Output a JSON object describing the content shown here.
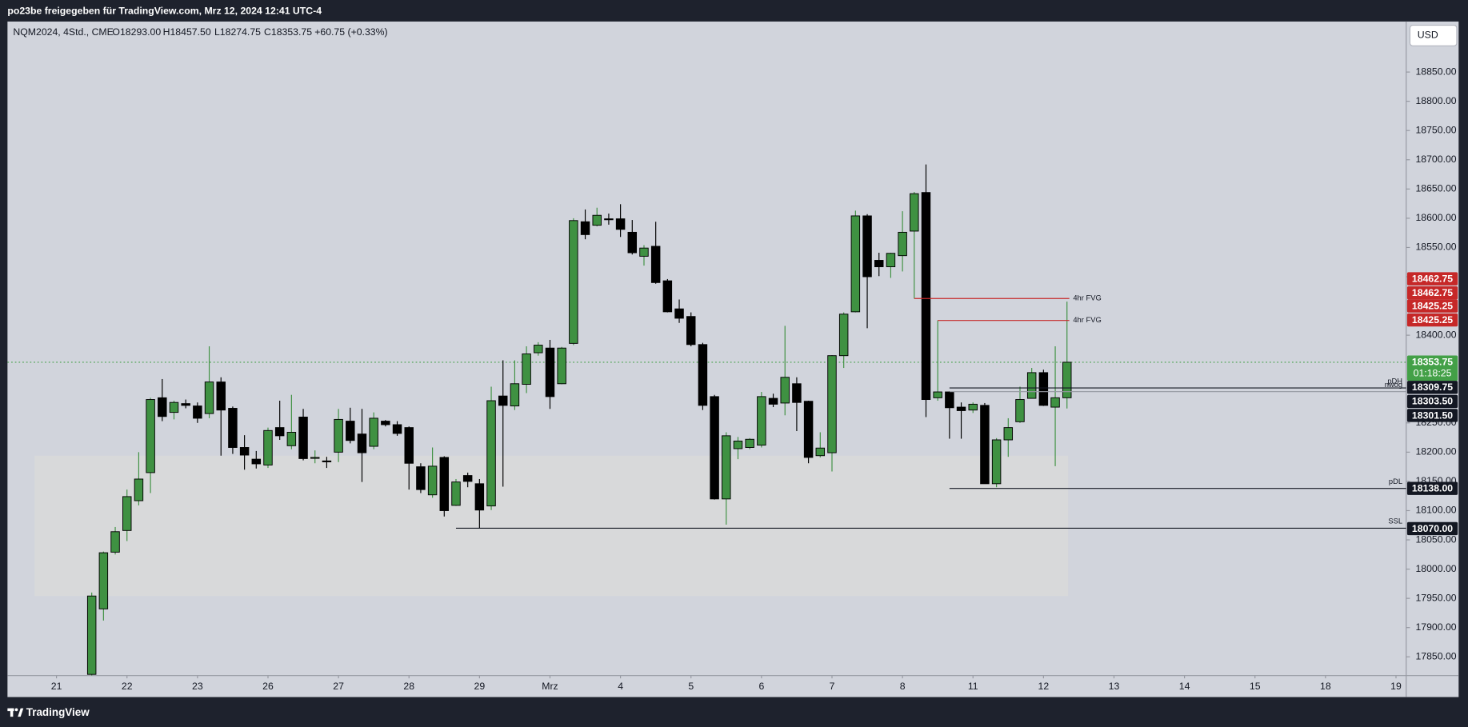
{
  "top_bar": "po23be freigegeben für TradingView.com, Mrz 12, 2024 12:41 UTC-4",
  "legend": {
    "symbol": "NQM2024, 4Std., CME",
    "open": "O18293.00",
    "high": "H18457.50",
    "low": "L18274.75",
    "close": "C18353.75",
    "change": "+60.75 (+0.33%)"
  },
  "currency": "USD",
  "brand": "TradingView",
  "chart_data": {
    "type": "candlestick",
    "up_color": "#3f9142",
    "down_color": "#000000",
    "open": [
      17820,
      17932,
      18029,
      18066,
      18117,
      18165,
      18293,
      18268,
      18283,
      18279,
      18266,
      18320,
      18275,
      18208,
      18188,
      18178,
      18242,
      18211,
      18260,
      18190,
      18185,
      18200,
      18253,
      18231,
      18210,
      18253,
      18247,
      18242,
      18175,
      18127,
      18191,
      18109,
      18160,
      18146,
      18108,
      18296,
      18279,
      18316,
      18370,
      18378,
      18317,
      18386,
      18594,
      18588,
      18599,
      18599,
      18576,
      18535,
      18552,
      18493,
      18445,
      18432,
      18384,
      18295,
      18120,
      18206,
      18208,
      18212,
      18292,
      18284,
      18317,
      18287,
      18194,
      18199,
      18365,
      18440,
      18604,
      18528,
      18517,
      18536,
      18578,
      18644,
      18293,
      18303,
      18277,
      18272,
      18280,
      18146,
      18221,
      18252,
      18292,
      18336,
      18277,
      18293
    ],
    "high": [
      17960,
      18030,
      18072,
      18136,
      18200,
      18293,
      18325,
      18288,
      18290,
      18285,
      18381,
      18328,
      18278,
      18229,
      18202,
      18242,
      18288,
      18298,
      18274,
      18203,
      18192,
      18274,
      18276,
      18274,
      18268,
      18255,
      18253,
      18244,
      18181,
      18208,
      18193,
      18154,
      18165,
      18154,
      18312,
      18357,
      18357,
      18381,
      18388,
      18392,
      18380,
      18600,
      18615,
      18618,
      18608,
      18624,
      18597,
      18554,
      18594,
      18496,
      18461,
      18439,
      18387,
      18298,
      18234,
      18226,
      18224,
      18303,
      18300,
      18416,
      18328,
      18288,
      18234,
      18366,
      18439,
      18613,
      18607,
      18541,
      18541,
      18612,
      18645,
      18692,
      18425.25,
      18304,
      18285,
      18285,
      18284,
      18224,
      18258,
      18312,
      18344,
      18341,
      18381,
      18457.5
    ],
    "low": [
      17800,
      17912,
      18025,
      18048,
      18109,
      18130,
      18253,
      18256,
      18275,
      18250,
      18258,
      18194,
      18197,
      18170,
      18172,
      18173,
      18221,
      18205,
      18186,
      18181,
      18173,
      18183,
      18215,
      18149,
      18205,
      18244,
      18228,
      18136,
      18130,
      18122,
      18090,
      18108,
      18140,
      18070,
      18101,
      18141,
      18272,
      18301,
      18365,
      18274,
      18316,
      18383,
      18564,
      18586,
      18589,
      18568,
      18538,
      18519,
      18488,
      18439,
      18421,
      18381,
      18272,
      18119,
      18076,
      18188,
      18205,
      18208,
      18277,
      18263,
      18236,
      18181,
      18191,
      18167,
      18344,
      18439,
      18412,
      18501,
      18498,
      18509,
      18462.75,
      18260,
      18288,
      18223,
      18223,
      18267,
      18146,
      18140,
      18192,
      18250,
      18292,
      18279,
      18176,
      18274.75
    ],
    "close": [
      17954,
      18028,
      18064,
      18124,
      18154,
      18290,
      18261,
      18285,
      18280,
      18258,
      18320,
      18272,
      18208,
      18195,
      18180,
      18237,
      18228,
      18234,
      18189,
      18191,
      18184,
      18256,
      18220,
      18199,
      18258,
      18247,
      18232,
      18181,
      18136,
      18176,
      18100,
      18149,
      18150,
      18101,
      18288,
      18280,
      18317,
      18368,
      18383,
      18295,
      18378,
      18596,
      18572,
      18605,
      18598,
      18581,
      18541,
      18549,
      18490,
      18440,
      18429,
      18384,
      18280,
      18120,
      18228,
      18219,
      18222,
      18295,
      18282,
      18328,
      18285,
      18191,
      18207,
      18365,
      18436,
      18604,
      18500,
      18517,
      18540,
      18576,
      18642,
      18290,
      18303,
      18276,
      18271,
      18282,
      18146,
      18221,
      18242,
      18290,
      18336,
      18280,
      18293,
      18353.75
    ],
    "xlim": [
      -7.17,
      111.87
    ],
    "xticks": [
      {
        "value": -3,
        "label": "21"
      },
      {
        "value": 3,
        "label": "22"
      },
      {
        "value": 9,
        "label": "23"
      },
      {
        "value": 15,
        "label": "26"
      },
      {
        "value": 21,
        "label": "27"
      },
      {
        "value": 27,
        "label": "28"
      },
      {
        "value": 33,
        "label": "29"
      },
      {
        "value": 39,
        "label": "Mrz"
      },
      {
        "value": 45,
        "label": "4"
      },
      {
        "value": 51,
        "label": "5"
      },
      {
        "value": 57,
        "label": "6"
      },
      {
        "value": 63,
        "label": "7"
      },
      {
        "value": 69,
        "label": "8"
      },
      {
        "value": 75,
        "label": "11"
      },
      {
        "value": 81,
        "label": "12"
      },
      {
        "value": 87,
        "label": "13"
      },
      {
        "value": 93,
        "label": "14"
      },
      {
        "value": 99,
        "label": "15"
      },
      {
        "value": 105,
        "label": "18"
      },
      {
        "value": 111,
        "label": "19"
      }
    ],
    "ylim": [
      17818,
      18936.4
    ],
    "yticks": [
      {
        "value": 18850,
        "label": "18850.00"
      },
      {
        "value": 18800,
        "label": "18800.00"
      },
      {
        "value": 18750,
        "label": "18750.00"
      },
      {
        "value": 18700,
        "label": "18700.00"
      },
      {
        "value": 18650,
        "label": "18650.00"
      },
      {
        "value": 18600,
        "label": "18600.00"
      },
      {
        "value": 18550,
        "label": "18550.00"
      },
      {
        "value": 18500,
        "label": "18500.00"
      },
      {
        "value": 18400,
        "label": "18400.00"
      },
      {
        "value": 18250,
        "label": "18250.00"
      },
      {
        "value": 18200,
        "label": "18200.00"
      },
      {
        "value": 18150,
        "label": "18150.00"
      },
      {
        "value": 18100,
        "label": "18100.00"
      },
      {
        "value": 18050,
        "label": "18050.00"
      },
      {
        "value": 18000,
        "label": "18000.00"
      },
      {
        "value": 17950,
        "label": "17950.00"
      },
      {
        "value": 17900,
        "label": "17900.00"
      },
      {
        "value": 17850,
        "label": "17850.00"
      }
    ],
    "zones": [
      {
        "from": -4.86,
        "to": 83.1,
        "top": 18194,
        "bottom": 17954,
        "color": "#d9d9d9"
      }
    ],
    "levels": [
      {
        "value": 18462.75,
        "label": "18462.75",
        "color": "#c62828",
        "text": "4hr FVG",
        "from": 70,
        "to": 83.2
      },
      {
        "value": 18462.75,
        "label": "18462.75",
        "color": "#c62828"
      },
      {
        "value": 18425.25,
        "label": "18425.25",
        "color": "#c62828",
        "text": "4hr FVG",
        "from": 72,
        "to": 83.2
      },
      {
        "value": 18425.25,
        "label": "18425.25",
        "color": "#c62828"
      },
      {
        "value": 18353.75,
        "label": "18353.75",
        "color": "#43a047",
        "countdown": "01:18:25",
        "from": -7.17,
        "dotted": true
      },
      {
        "value": 18309.75,
        "label": "18309.75",
        "color": "#131722",
        "text": "pDH",
        "from": 73
      },
      {
        "value": 18303.5,
        "label": "18303.50",
        "color": "#131722",
        "text": "nwog",
        "from": 73,
        "line_color": "#9598a1"
      },
      {
        "value": 18301.5,
        "label": "18301.50",
        "color": "#131722"
      },
      {
        "value": 18138,
        "label": "18138.00",
        "color": "#131722",
        "text": "pDL",
        "from": 73
      },
      {
        "value": 18070,
        "label": "18070.00",
        "color": "#131722",
        "text": "SSL",
        "from": 31
      }
    ]
  }
}
